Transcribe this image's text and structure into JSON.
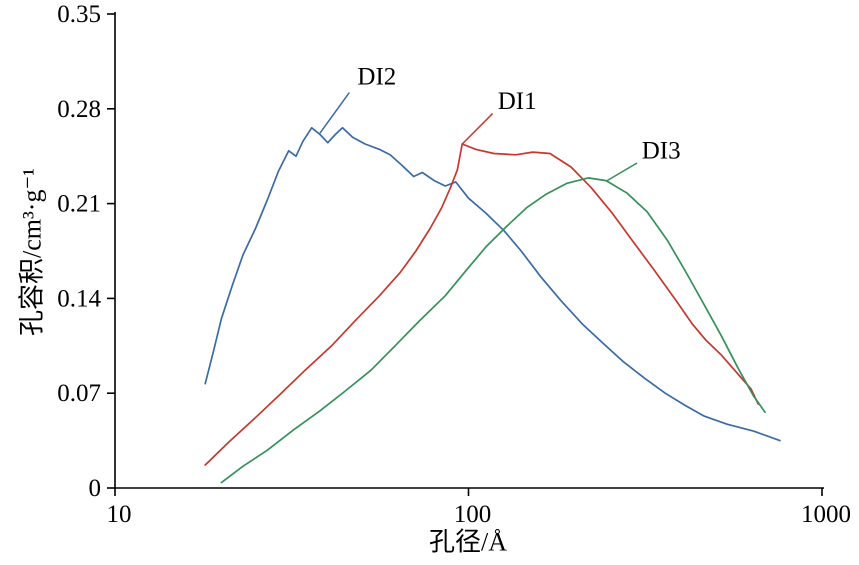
{
  "figure": {
    "background": "#ffffff",
    "axis_color": "#000000"
  },
  "chart_data": {
    "type": "line",
    "title": "",
    "xlabel": "孔径/Å",
    "ylabel": "孔容积/cm³·g⁻¹",
    "x_scale": "log",
    "xlim": [
      10,
      1000
    ],
    "ylim": [
      0,
      0.35
    ],
    "grid": false,
    "legend": "inline-annotations",
    "xticks": {
      "values": [
        10,
        100,
        1000
      ],
      "labels": [
        "10",
        "100",
        "1000"
      ]
    },
    "yticks": {
      "values": [
        0,
        0.07,
        0.14,
        0.21,
        0.28,
        0.35
      ],
      "labels": [
        "0",
        "0.07",
        "0.14",
        "0.21",
        "0.28",
        "0.35"
      ]
    },
    "series": [
      {
        "name": "DI2",
        "color": "#3b6aa5",
        "points": [
          [
            18,
            0.077
          ],
          [
            19,
            0.101
          ],
          [
            20,
            0.125
          ],
          [
            21.5,
            0.15
          ],
          [
            23,
            0.172
          ],
          [
            25,
            0.192
          ],
          [
            27,
            0.213
          ],
          [
            29,
            0.234
          ],
          [
            31,
            0.249
          ],
          [
            32.5,
            0.245
          ],
          [
            34,
            0.256
          ],
          [
            36,
            0.266
          ],
          [
            38,
            0.261
          ],
          [
            40,
            0.255
          ],
          [
            42,
            0.261
          ],
          [
            44,
            0.266
          ],
          [
            47,
            0.259
          ],
          [
            51,
            0.254
          ],
          [
            56,
            0.25
          ],
          [
            60,
            0.246
          ],
          [
            65,
            0.238
          ],
          [
            70,
            0.23
          ],
          [
            74,
            0.233
          ],
          [
            80,
            0.227
          ],
          [
            86,
            0.223
          ],
          [
            92,
            0.226
          ],
          [
            100,
            0.214
          ],
          [
            112,
            0.203
          ],
          [
            126,
            0.19
          ],
          [
            141,
            0.175
          ],
          [
            160,
            0.156
          ],
          [
            183,
            0.138
          ],
          [
            210,
            0.121
          ],
          [
            240,
            0.107
          ],
          [
            275,
            0.093
          ],
          [
            315,
            0.081
          ],
          [
            360,
            0.07
          ],
          [
            410,
            0.061
          ],
          [
            465,
            0.053
          ],
          [
            540,
            0.047
          ],
          [
            640,
            0.042
          ],
          [
            760,
            0.035
          ]
        ]
      },
      {
        "name": "DI1",
        "color": "#c8372d",
        "points": [
          [
            18,
            0.017
          ],
          [
            21,
            0.034
          ],
          [
            24.5,
            0.05
          ],
          [
            29,
            0.068
          ],
          [
            34.5,
            0.087
          ],
          [
            41,
            0.105
          ],
          [
            48,
            0.124
          ],
          [
            56,
            0.142
          ],
          [
            64,
            0.159
          ],
          [
            71,
            0.175
          ],
          [
            78,
            0.192
          ],
          [
            84,
            0.207
          ],
          [
            89,
            0.222
          ],
          [
            93,
            0.235
          ],
          [
            96,
            0.254
          ],
          [
            105,
            0.25
          ],
          [
            118,
            0.247
          ],
          [
            136,
            0.246
          ],
          [
            152,
            0.248
          ],
          [
            170,
            0.247
          ],
          [
            195,
            0.237
          ],
          [
            222,
            0.222
          ],
          [
            255,
            0.203
          ],
          [
            292,
            0.182
          ],
          [
            335,
            0.161
          ],
          [
            385,
            0.139
          ],
          [
            430,
            0.121
          ],
          [
            470,
            0.109
          ],
          [
            520,
            0.098
          ],
          [
            575,
            0.085
          ],
          [
            630,
            0.073
          ],
          [
            660,
            0.062
          ]
        ]
      },
      {
        "name": "DI3",
        "color": "#35915a",
        "points": [
          [
            20,
            0.004
          ],
          [
            23,
            0.016
          ],
          [
            27,
            0.028
          ],
          [
            32,
            0.043
          ],
          [
            38,
            0.057
          ],
          [
            45,
            0.072
          ],
          [
            53,
            0.087
          ],
          [
            62,
            0.105
          ],
          [
            73,
            0.124
          ],
          [
            86,
            0.142
          ],
          [
            98,
            0.16
          ],
          [
            112,
            0.178
          ],
          [
            128,
            0.193
          ],
          [
            146,
            0.207
          ],
          [
            166,
            0.217
          ],
          [
            190,
            0.225
          ],
          [
            218,
            0.229
          ],
          [
            245,
            0.227
          ],
          [
            280,
            0.218
          ],
          [
            320,
            0.204
          ],
          [
            365,
            0.183
          ],
          [
            415,
            0.158
          ],
          [
            465,
            0.135
          ],
          [
            520,
            0.112
          ],
          [
            580,
            0.088
          ],
          [
            640,
            0.068
          ],
          [
            690,
            0.056
          ]
        ]
      }
    ],
    "annotations": [
      {
        "text": "DI2",
        "series": "DI2",
        "text_pos": [
          48.5,
          0.298
        ],
        "leader": [
          [
            46,
            0.292
          ],
          [
            38,
            0.262
          ]
        ]
      },
      {
        "text": "DI1",
        "series": "DI1",
        "text_pos": [
          121,
          0.28
        ],
        "leader": [
          [
            117,
            0.2765
          ],
          [
            96,
            0.254
          ]
        ]
      },
      {
        "text": "DI3",
        "series": "DI3",
        "text_pos": [
          309,
          0.2434
        ],
        "leader": [
          [
            300,
            0.24
          ],
          [
            245,
            0.2265
          ]
        ]
      }
    ]
  }
}
